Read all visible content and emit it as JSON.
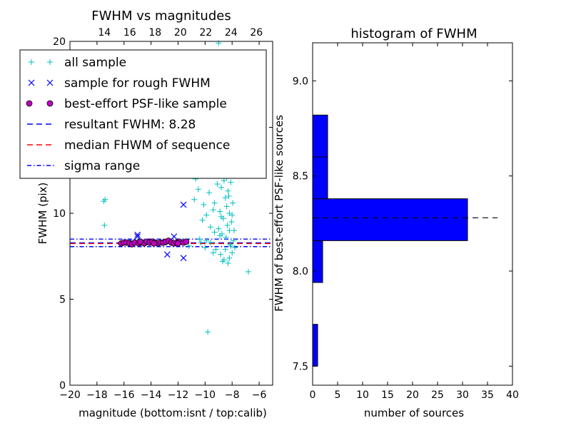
{
  "chart_data": [
    {
      "type": "scatter",
      "title": "FWHM vs magnitudes",
      "xlabel": "magnitude (bottom:isnt / top:calib)",
      "ylabel": "FWHM (pix)",
      "xlim": [
        -20,
        -5
      ],
      "ylim": [
        0,
        20
      ],
      "xticks": [
        -20,
        -18,
        -16,
        -14,
        -12,
        -10,
        -8,
        -6
      ],
      "xtick_labels": [
        "−20",
        "−18",
        "−16",
        "−14",
        "−12",
        "−10",
        "−8",
        "−6"
      ],
      "yticks": [
        0,
        5,
        10,
        15,
        20
      ],
      "ytick_labels": [
        "0",
        "5",
        "10",
        "15",
        "20"
      ],
      "top_axis": {
        "ticks": [
          14,
          16,
          18,
          20,
          22,
          24,
          26
        ],
        "tick_labels": [
          "14",
          "16",
          "18",
          "20",
          "22",
          "24",
          "26"
        ],
        "xlim": [
          11.28,
          27.28
        ]
      },
      "legend": {
        "placement": "top-left",
        "entries": [
          {
            "label": "all sample",
            "marker": "+",
            "color": "#00bfbf"
          },
          {
            "label": "sample for rough FWHM",
            "marker": "x",
            "color": "#0000ff"
          },
          {
            "label": "best-effort PSF-like sample",
            "marker": "o",
            "color": "#bf00bf"
          },
          {
            "label": "resultant FWHM: 8.28",
            "style": "dashed",
            "color": "#0000ff"
          },
          {
            "label": "median FHWM of sequence",
            "style": "dashed",
            "color": "#ff0000"
          },
          {
            "label": "sigma range",
            "style": "dashdot",
            "color": "#0000ff"
          }
        ]
      },
      "hlines": [
        {
          "y": 8.28,
          "style": "dashed",
          "color": "#0000ff"
        },
        {
          "y": 8.24,
          "style": "dashed",
          "color": "#ff0000"
        },
        {
          "y": 8.5,
          "style": "dashdot",
          "color": "#0000ff"
        },
        {
          "y": 8.06,
          "style": "dashdot",
          "color": "#0000ff"
        }
      ],
      "series": [
        {
          "name": "all sample",
          "marker": "+",
          "color": "#00bfbf",
          "points": [
            [
              -17.5,
              10.7
            ],
            [
              -17.4,
              10.8
            ],
            [
              -17.45,
              9.3
            ],
            [
              -15.6,
              8.3
            ],
            [
              -15.0,
              8.35
            ],
            [
              -14.6,
              8.3
            ],
            [
              -14.1,
              8.25
            ],
            [
              -13.6,
              8.3
            ],
            [
              -13.1,
              8.2
            ],
            [
              -12.6,
              8.3
            ],
            [
              -12.1,
              8.35
            ],
            [
              -11.6,
              8.4
            ],
            [
              -11.0,
              12.3
            ],
            [
              -11.2,
              8.1
            ],
            [
              -10.8,
              10.8
            ],
            [
              -10.7,
              12.0
            ],
            [
              -10.5,
              11.4
            ],
            [
              -10.4,
              8.5
            ],
            [
              -10.2,
              9.6
            ],
            [
              -10.1,
              10.5
            ],
            [
              -10.0,
              8.0
            ],
            [
              -9.9,
              9.9
            ],
            [
              -9.8,
              3.1
            ],
            [
              -9.7,
              11.2
            ],
            [
              -9.6,
              8.3
            ],
            [
              -9.5,
              12.3
            ],
            [
              -9.4,
              10.2
            ],
            [
              -9.3,
              8.9
            ],
            [
              -9.2,
              7.9
            ],
            [
              -9.1,
              11.7
            ],
            [
              -9.0,
              9.1
            ],
            [
              -8.95,
              12.8
            ],
            [
              -8.9,
              10.1
            ],
            [
              -8.85,
              7.6
            ],
            [
              -8.8,
              11.5
            ],
            [
              -8.75,
              8.8
            ],
            [
              -8.7,
              12.4
            ],
            [
              -8.65,
              9.7
            ],
            [
              -8.6,
              7.3
            ],
            [
              -8.55,
              13.0
            ],
            [
              -8.5,
              10.9
            ],
            [
              -8.45,
              8.6
            ],
            [
              -8.4,
              12.1
            ],
            [
              -8.35,
              9.3
            ],
            [
              -8.3,
              7.1
            ],
            [
              -8.25,
              11.0
            ],
            [
              -8.2,
              10.0
            ],
            [
              -8.15,
              8.2
            ],
            [
              -8.1,
              11.8
            ],
            [
              -8.05,
              9.5
            ],
            [
              -8.0,
              7.7
            ],
            [
              -7.95,
              10.6
            ],
            [
              -7.9,
              8.4
            ],
            [
              -9.0,
              19.9
            ],
            [
              -8.7,
              14.9
            ],
            [
              -8.6,
              12.9
            ],
            [
              -8.4,
              12.6
            ],
            [
              -8.3,
              11.3
            ],
            [
              -8.2,
              9.0
            ],
            [
              -8.1,
              8.1
            ],
            [
              -8.9,
              8.7
            ],
            [
              -9.3,
              10.6
            ],
            [
              -9.6,
              9.2
            ],
            [
              -9.9,
              8.4
            ],
            [
              -10.3,
              8.3
            ],
            [
              -8.5,
              7.9
            ],
            [
              -8.2,
              7.4
            ],
            [
              -8.0,
              9.9
            ],
            [
              -7.85,
              9.0
            ],
            [
              -7.8,
              8.0
            ],
            [
              -8.4,
              10.4
            ],
            [
              -8.6,
              11.9
            ],
            [
              -8.8,
              9.8
            ],
            [
              -6.8,
              6.6
            ],
            [
              -9.4,
              7.7
            ],
            [
              -8.7,
              7.2
            ]
          ]
        },
        {
          "name": "sample for rough FWHM",
          "marker": "x",
          "color": "#0000ff",
          "points": [
            [
              -15.0,
              8.75
            ],
            [
              -15.0,
              8.65
            ],
            [
              -12.8,
              7.6
            ],
            [
              -12.3,
              8.65
            ],
            [
              -11.6,
              10.5
            ],
            [
              -11.6,
              7.4
            ],
            [
              -15.4,
              8.35
            ],
            [
              -14.4,
              8.3
            ],
            [
              -12.7,
              8.3
            ]
          ]
        },
        {
          "name": "best-effort PSF-like sample",
          "marker": "o",
          "color": "#bf00bf",
          "points": [
            [
              -16.2,
              8.25
            ],
            [
              -16.0,
              8.3
            ],
            [
              -15.8,
              8.3
            ],
            [
              -15.6,
              8.25
            ],
            [
              -15.4,
              8.2
            ],
            [
              -15.2,
              8.3
            ],
            [
              -14.9,
              8.25
            ],
            [
              -14.7,
              8.3
            ],
            [
              -14.5,
              8.25
            ],
            [
              -14.3,
              8.35
            ],
            [
              -14.1,
              8.3
            ],
            [
              -13.9,
              8.35
            ],
            [
              -13.7,
              8.3
            ],
            [
              -13.5,
              8.25
            ],
            [
              -13.3,
              8.3
            ],
            [
              -13.1,
              8.3
            ],
            [
              -12.9,
              8.35
            ],
            [
              -12.7,
              8.4
            ],
            [
              -12.5,
              8.3
            ],
            [
              -12.3,
              8.25
            ],
            [
              -12.1,
              8.3
            ],
            [
              -11.9,
              8.35
            ],
            [
              -11.6,
              8.3
            ],
            [
              -11.4,
              8.35
            ],
            [
              -13.8,
              8.25
            ],
            [
              -14.8,
              8.35
            ],
            [
              -12.0,
              8.25
            ]
          ]
        }
      ]
    },
    {
      "type": "bar",
      "orientation": "horizontal",
      "title": "histogram of FWHM",
      "xlabel": "number of sources",
      "ylabel": "FWHM of best-effort PSF-like sources",
      "xlim": [
        0,
        40
      ],
      "ylim": [
        7.4,
        9.2
      ],
      "xticks": [
        0,
        5,
        10,
        15,
        20,
        25,
        30,
        35,
        40
      ],
      "xtick_labels": [
        "0",
        "5",
        "10",
        "15",
        "20",
        "25",
        "30",
        "35",
        "40"
      ],
      "yticks": [
        7.5,
        8.0,
        8.5,
        9.0
      ],
      "ytick_labels": [
        "7.5",
        "8.0",
        "8.5",
        "9.0"
      ],
      "bar_color": "#0000ff",
      "bins": [
        {
          "from": 7.5,
          "to": 7.72,
          "count": 1
        },
        {
          "from": 7.72,
          "to": 7.94,
          "count": 0
        },
        {
          "from": 7.94,
          "to": 8.16,
          "count": 2
        },
        {
          "from": 8.16,
          "to": 8.38,
          "count": 31
        },
        {
          "from": 8.38,
          "to": 8.6,
          "count": 3
        },
        {
          "from": 8.6,
          "to": 8.82,
          "count": 3
        }
      ],
      "hline": {
        "y": 8.28,
        "x_from": 0,
        "x_to": 37,
        "style": "dashed",
        "color": "#000000"
      }
    }
  ]
}
